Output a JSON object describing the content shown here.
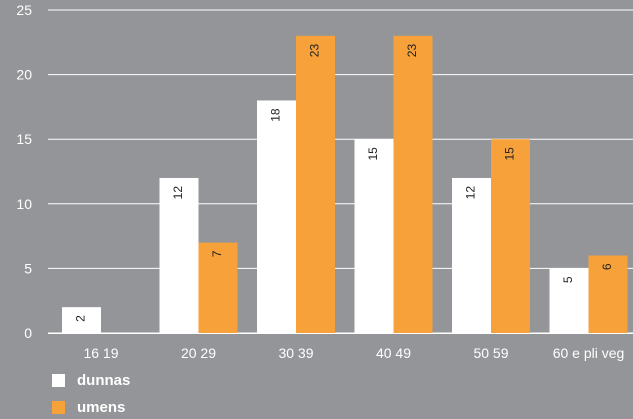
{
  "colors": {
    "background": "#939598",
    "grid": "#ffffff",
    "text": "#ffffff",
    "bar_label": "#222222",
    "series_colors": [
      "#ffffff",
      "#f7a13a"
    ]
  },
  "chart_data": {
    "type": "bar",
    "categories": [
      "16  19",
      "20  29",
      "30  39",
      "40  49",
      "50  59",
      "60 e pli veg"
    ],
    "series": [
      {
        "name": "dunnas",
        "values": [
          2,
          12,
          18,
          15,
          12,
          5
        ]
      },
      {
        "name": "umens",
        "values": [
          0,
          7,
          23,
          23,
          15,
          6
        ]
      }
    ],
    "value_labels": [
      [
        "2",
        "12",
        "18",
        "15",
        "12",
        "5"
      ],
      [
        "",
        "7",
        "23",
        "23",
        "15",
        "6"
      ]
    ],
    "yticks": [
      "0",
      "5",
      "10",
      "15",
      "20",
      "25"
    ],
    "ylim": [
      0,
      25
    ],
    "grid": true,
    "legend_position": "bottom-left",
    "title": "",
    "xlabel": "",
    "ylabel": ""
  }
}
